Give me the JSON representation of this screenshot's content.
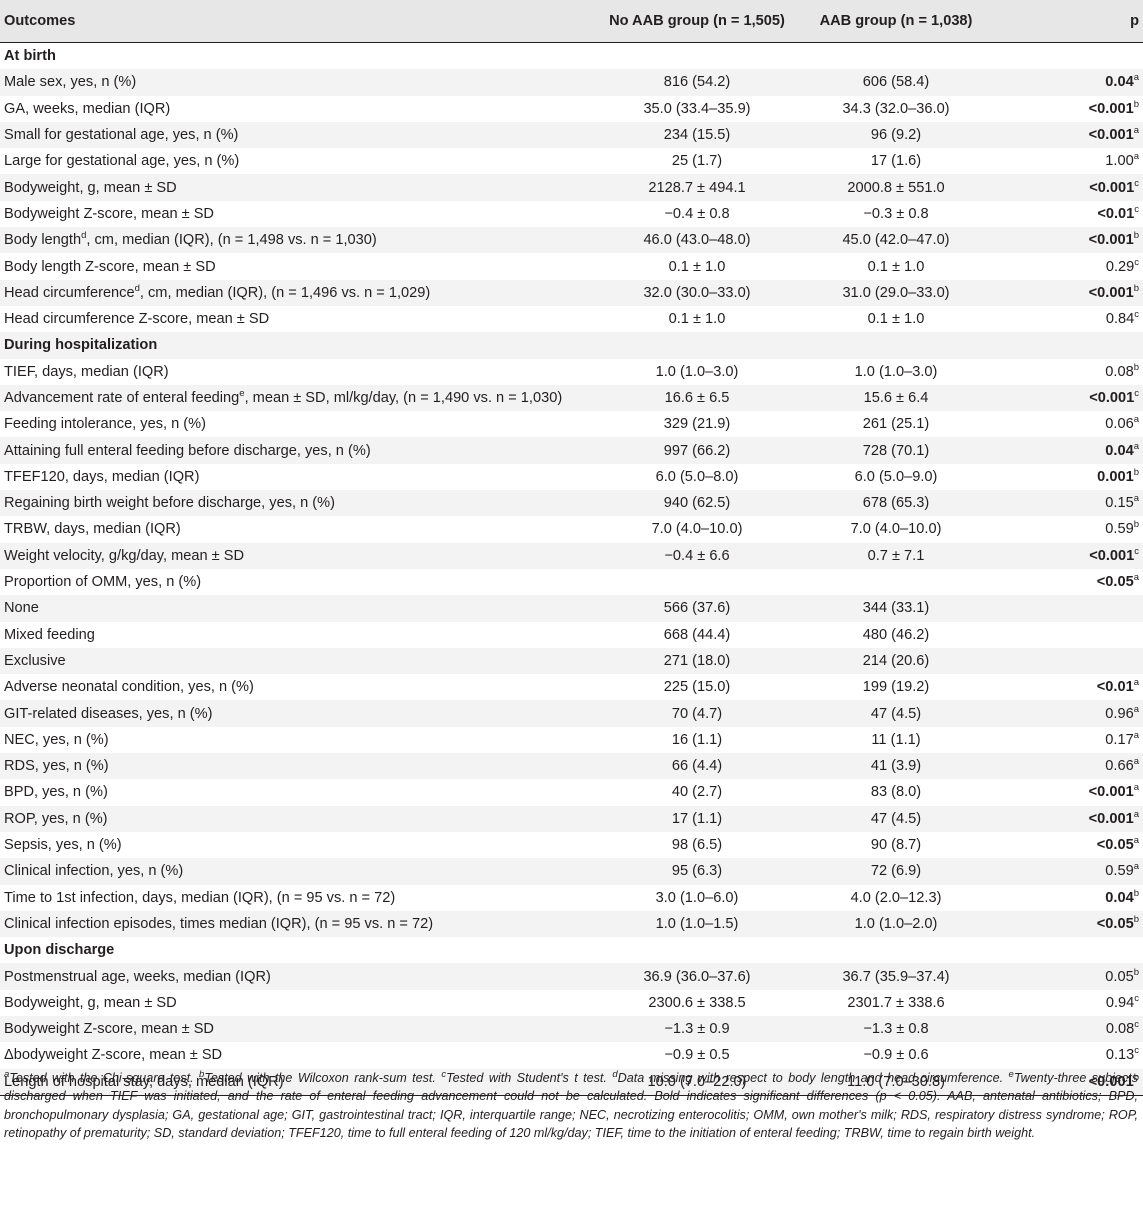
{
  "table": {
    "headers": {
      "outcomes": "Outcomes",
      "no_aab": "No AAB group (n = 1,505)",
      "aab": "AAB group (n = 1,038)",
      "p": "p"
    },
    "rows": [
      {
        "section": "At birth"
      },
      {
        "label": "Male sex, yes, n (%)",
        "no_aab": "816 (54.2)",
        "aab": "606 (58.4)",
        "p": "0.04",
        "sup": "a",
        "bold": true
      },
      {
        "label": "GA, weeks, median (IQR)",
        "no_aab": "35.0 (33.4–35.9)",
        "aab": "34.3 (32.0–36.0)",
        "p": "<0.001",
        "sup": "b",
        "bold": true
      },
      {
        "label": "Small for gestational age, yes, n (%)",
        "no_aab": "234 (15.5)",
        "aab": "96 (9.2)",
        "p": "<0.001",
        "sup": "a",
        "bold": true
      },
      {
        "label": "Large for gestational age, yes, n (%)",
        "no_aab": "25 (1.7)",
        "aab": "17 (1.6)",
        "p": "1.00",
        "sup": "a",
        "bold": false
      },
      {
        "label": "Bodyweight, g, mean ± SD",
        "no_aab": "2128.7 ± 494.1",
        "aab": "2000.8 ± 551.0",
        "p": "<0.001",
        "sup": "c",
        "bold": true
      },
      {
        "label": "Bodyweight Z-score, mean ± SD",
        "no_aab": "−0.4 ± 0.8",
        "aab": "−0.3 ± 0.8",
        "p": "<0.01",
        "sup": "c",
        "bold": true
      },
      {
        "label": "Body length",
        "label_sup": "d",
        "label_rest": ", cm, median (IQR), (n = 1,498 vs. n = 1,030)",
        "no_aab": "46.0 (43.0–48.0)",
        "aab": "45.0 (42.0–47.0)",
        "p": "<0.001",
        "sup": "b",
        "bold": true
      },
      {
        "label": "Body length Z-score, mean ± SD",
        "no_aab": "0.1 ± 1.0",
        "aab": "0.1 ± 1.0",
        "p": "0.29",
        "sup": "c",
        "bold": false
      },
      {
        "label": "Head circumference",
        "label_sup": "d",
        "label_rest": ", cm, median (IQR), (n = 1,496 vs. n = 1,029)",
        "no_aab": "32.0 (30.0–33.0)",
        "aab": "31.0 (29.0–33.0)",
        "p": "<0.001",
        "sup": "b",
        "bold": true
      },
      {
        "label": "Head circumference Z-score, mean ± SD",
        "no_aab": "0.1 ± 1.0",
        "aab": "0.1 ± 1.0",
        "p": "0.84",
        "sup": "c",
        "bold": false
      },
      {
        "section": "During hospitalization"
      },
      {
        "label": "TIEF, days, median (IQR)",
        "no_aab": "1.0 (1.0–3.0)",
        "aab": "1.0 (1.0–3.0)",
        "p": "0.08",
        "sup": "b",
        "bold": false
      },
      {
        "label": "Advancement rate of enteral feeding",
        "label_sup": "e",
        "label_rest": ", mean ± SD, ml/kg/day, (n = 1,490 vs. n = 1,030)",
        "no_aab": "16.6 ± 6.5",
        "aab": "15.6 ± 6.4",
        "p": "<0.001",
        "sup": "c",
        "bold": true
      },
      {
        "label": "Feeding intolerance, yes, n (%)",
        "no_aab": "329 (21.9)",
        "aab": "261 (25.1)",
        "p": "0.06",
        "sup": "a",
        "bold": false
      },
      {
        "label": "Attaining full enteral feeding before discharge, yes, n (%)",
        "no_aab": "997 (66.2)",
        "aab": "728 (70.1)",
        "p": "0.04",
        "sup": "a",
        "bold": true
      },
      {
        "label": "TFEF120, days, median (IQR)",
        "no_aab": "6.0 (5.0–8.0)",
        "aab": "6.0 (5.0–9.0)",
        "p": "0.001",
        "sup": "b",
        "bold": true
      },
      {
        "label": "Regaining birth weight before discharge, yes, n (%)",
        "no_aab": "940 (62.5)",
        "aab": "678 (65.3)",
        "p": "0.15",
        "sup": "a",
        "bold": false
      },
      {
        "label": "TRBW, days, median (IQR)",
        "no_aab": "7.0 (4.0–10.0)",
        "aab": "7.0 (4.0–10.0)",
        "p": "0.59",
        "sup": "b",
        "bold": false
      },
      {
        "label": "Weight velocity, g/kg/day, mean ± SD",
        "no_aab": "−0.4 ± 6.6",
        "aab": "0.7 ± 7.1",
        "p": "<0.001",
        "sup": "c",
        "bold": true
      },
      {
        "label": "Proportion of OMM, yes, n (%)",
        "no_aab": "",
        "aab": "",
        "p": "<0.05",
        "sup": "a",
        "bold": true
      },
      {
        "label": "None",
        "no_aab": "566 (37.6)",
        "aab": "344 (33.1)",
        "p": "",
        "sup": "",
        "bold": false
      },
      {
        "label": "Mixed feeding",
        "no_aab": "668 (44.4)",
        "aab": "480 (46.2)",
        "p": "",
        "sup": "",
        "bold": false
      },
      {
        "label": "Exclusive",
        "no_aab": "271 (18.0)",
        "aab": "214 (20.6)",
        "p": "",
        "sup": "",
        "bold": false
      },
      {
        "label": "Adverse neonatal condition, yes, n (%)",
        "no_aab": "225 (15.0)",
        "aab": "199 (19.2)",
        "p": "<0.01",
        "sup": "a",
        "bold": true
      },
      {
        "label": "GIT-related diseases, yes, n (%)",
        "no_aab": "70 (4.7)",
        "aab": "47 (4.5)",
        "p": "0.96",
        "sup": "a",
        "bold": false
      },
      {
        "label": "NEC, yes, n (%)",
        "no_aab": "16 (1.1)",
        "aab": "11 (1.1)",
        "p": "0.17",
        "sup": "a",
        "bold": false
      },
      {
        "label": "RDS, yes, n (%)",
        "no_aab": "66 (4.4)",
        "aab": "41 (3.9)",
        "p": "0.66",
        "sup": "a",
        "bold": false
      },
      {
        "label": "BPD, yes, n (%)",
        "no_aab": "40 (2.7)",
        "aab": "83 (8.0)",
        "p": "<0.001",
        "sup": "a",
        "bold": true
      },
      {
        "label": "ROP, yes, n (%)",
        "no_aab": "17 (1.1)",
        "aab": "47 (4.5)",
        "p": "<0.001",
        "sup": "a",
        "bold": true
      },
      {
        "label": "Sepsis, yes, n (%)",
        "no_aab": "98 (6.5)",
        "aab": "90 (8.7)",
        "p": "<0.05",
        "sup": "a",
        "bold": true
      },
      {
        "label": "Clinical infection, yes, n (%)",
        "no_aab": "95 (6.3)",
        "aab": "72 (6.9)",
        "p": "0.59",
        "sup": "a",
        "bold": false
      },
      {
        "label": "Time to 1st infection, days, median (IQR), (n = 95 vs. n = 72)",
        "no_aab": "3.0 (1.0–6.0)",
        "aab": "4.0 (2.0–12.3)",
        "p": "0.04",
        "sup": "b",
        "bold": true
      },
      {
        "label": "Clinical infection episodes, times median (IQR), (n = 95 vs. n = 72)",
        "no_aab": "1.0 (1.0–1.5)",
        "aab": "1.0 (1.0–2.0)",
        "p": "<0.05",
        "sup": "b",
        "bold": true
      },
      {
        "section": "Upon discharge"
      },
      {
        "label": "Postmenstrual age, weeks, median (IQR)",
        "no_aab": "36.9 (36.0–37.6)",
        "aab": "36.7 (35.9–37.4)",
        "p": "0.05",
        "sup": "b",
        "bold": false
      },
      {
        "label": "Bodyweight, g, mean ± SD",
        "no_aab": "2300.6 ± 338.5",
        "aab": "2301.7 ± 338.6",
        "p": "0.94",
        "sup": "c",
        "bold": false
      },
      {
        "label": "Bodyweight Z-score, mean ± SD",
        "no_aab": "−1.3 ± 0.9",
        "aab": "−1.3 ± 0.8",
        "p": "0.08",
        "sup": "c",
        "bold": false
      },
      {
        "label": "Δbodyweight Z-score, mean ± SD",
        "no_aab": "−0.9 ± 0.5",
        "aab": "−0.9 ± 0.6",
        "p": "0.13",
        "sup": "c",
        "bold": false
      },
      {
        "label": "Length of hospital stay, days, median (IQR)",
        "no_aab": "10.0 (7.0–22.0)",
        "aab": "11.0 (7.0–30.8)",
        "p": "<0.001",
        "sup": "b",
        "bold": true
      }
    ]
  },
  "footnote": {
    "items": [
      {
        "mark": "a",
        "text": "Tested with the Chi-square test."
      },
      {
        "mark": "b",
        "text": "Tested with the Wilcoxon rank-sum test."
      },
      {
        "mark": "c",
        "text": "Tested with Student's t test."
      },
      {
        "mark": "d",
        "text": "Data missing with respect to body length and head circumference."
      },
      {
        "mark": "e",
        "text": "Twenty-three subjects discharged when TIEF was initiated, and the rate of enteral feeding advancement could not be calculated. Bold indicates significant differences (p < 0.05). AAB, antenatal antibiotics; BPD, bronchopulmonary dysplasia; GA, gestational age; GIT, gastrointestinal tract; IQR, interquartile range; NEC, necrotizing enterocolitis; OMM, own mother's milk; RDS, respiratory distress syndrome; ROP, retinopathy of prematurity; SD, standard deviation; TFEF120, time to full enteral feeding of 120 ml/kg/day; TIEF, time to the initiation of enteral feeding; TRBW, time to regain birth weight."
      }
    ]
  }
}
